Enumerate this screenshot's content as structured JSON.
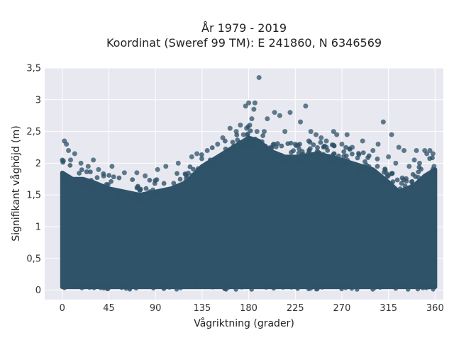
{
  "chart_data": {
    "type": "scatter",
    "title": "År 1979 - 2019",
    "subtitle": "Koordinat (Sweref 99 TM): E 241860, N 6346569",
    "xlabel": "Vågriktning (grader)",
    "ylabel": "Signifikant våghöjd (m)",
    "xlim": [
      -17,
      368
    ],
    "ylim": [
      -0.15,
      3.5
    ],
    "x_ticks": [
      0,
      45,
      90,
      135,
      180,
      225,
      270,
      315,
      360
    ],
    "x_tick_labels": [
      "0",
      "45",
      "90",
      "135",
      "180",
      "225",
      "270",
      "315",
      "360"
    ],
    "y_ticks": [
      0,
      0.5,
      1,
      1.5,
      2,
      2.5,
      3,
      3.5
    ],
    "y_tick_labels": [
      "0",
      "0,5",
      "1",
      "1,5",
      "2",
      "2,5",
      "3",
      "3,5"
    ],
    "grid": true,
    "legend": "none",
    "point_color": "#2f5369",
    "plot_background": "#e8e8f0",
    "dense_band": {
      "x_range": [
        0,
        360
      ],
      "y_min": 0.05,
      "y_upper_envelope": [
        [
          0,
          1.85
        ],
        [
          10,
          1.75
        ],
        [
          20,
          1.75
        ],
        [
          30,
          1.7
        ],
        [
          45,
          1.6
        ],
        [
          60,
          1.55
        ],
        [
          75,
          1.5
        ],
        [
          90,
          1.55
        ],
        [
          105,
          1.6
        ],
        [
          120,
          1.7
        ],
        [
          135,
          1.95
        ],
        [
          150,
          2.1
        ],
        [
          165,
          2.25
        ],
        [
          175,
          2.35
        ],
        [
          180,
          2.4
        ],
        [
          190,
          2.35
        ],
        [
          200,
          2.2
        ],
        [
          215,
          2.1
        ],
        [
          230,
          2.1
        ],
        [
          245,
          2.15
        ],
        [
          260,
          2.1
        ],
        [
          280,
          2.0
        ],
        [
          300,
          1.9
        ],
        [
          315,
          1.7
        ],
        [
          325,
          1.55
        ],
        [
          340,
          1.65
        ],
        [
          350,
          1.8
        ],
        [
          360,
          1.9
        ]
      ]
    },
    "outliers": {
      "x": [
        2,
        4,
        6,
        8,
        12,
        18,
        25,
        30,
        35,
        48,
        60,
        72,
        80,
        92,
        100,
        112,
        125,
        130,
        140,
        150,
        155,
        162,
        168,
        172,
        175,
        177,
        178,
        180,
        181,
        183,
        185,
        186,
        188,
        190,
        195,
        198,
        205,
        210,
        215,
        220,
        225,
        230,
        235,
        238,
        240,
        245,
        250,
        255,
        262,
        265,
        270,
        275,
        280,
        290,
        300,
        305,
        310,
        315,
        318,
        322,
        325,
        330,
        335,
        340,
        342,
        345,
        350,
        352,
        355,
        358,
        359
      ],
      "y": [
        2.35,
        2.3,
        2.2,
        2.05,
        2.15,
        2.0,
        1.95,
        2.05,
        1.9,
        1.95,
        1.85,
        1.85,
        1.8,
        1.9,
        1.95,
        2.0,
        2.1,
        2.15,
        2.2,
        2.3,
        2.4,
        2.55,
        2.5,
        2.6,
        2.45,
        2.9,
        2.55,
        2.95,
        2.6,
        2.7,
        2.85,
        2.95,
        2.5,
        3.35,
        2.5,
        2.7,
        2.8,
        2.75,
        2.5,
        2.8,
        2.3,
        2.65,
        2.9,
        2.35,
        2.5,
        2.45,
        2.4,
        2.35,
        2.5,
        2.45,
        2.3,
        2.45,
        2.25,
        2.35,
        2.2,
        2.3,
        2.65,
        2.1,
        2.45,
        2.0,
        2.25,
        2.2,
        1.95,
        2.05,
        2.2,
        2.0,
        2.2,
        2.15,
        2.2,
        2.15,
        1.95
      ]
    }
  }
}
